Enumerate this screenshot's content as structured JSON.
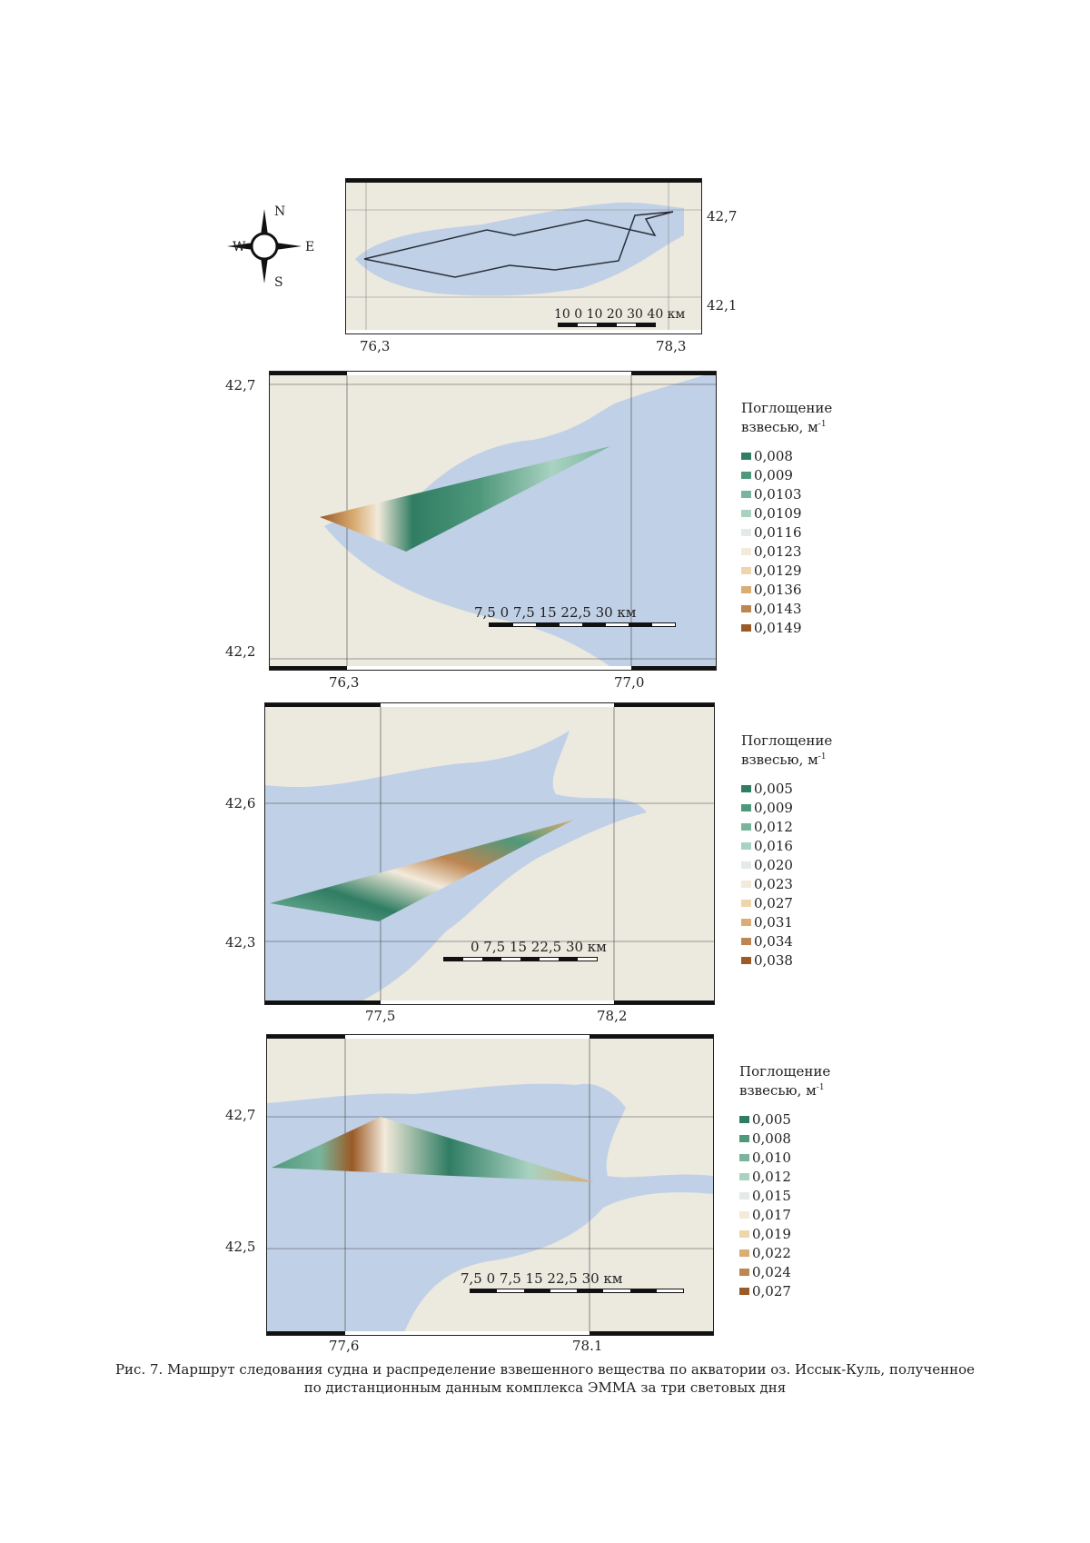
{
  "overview": {
    "coords": {
      "lat_top": "42,7",
      "lat_bottom": "42,1",
      "lon_left": "76,3",
      "lon_right": "78,3"
    },
    "scale_numbers": "10  0  10 20 30 40 км",
    "compass": {
      "n": "N",
      "s": "S",
      "e": "E",
      "w": "W"
    }
  },
  "panels": [
    {
      "coords": {
        "lat_top": "42,7",
        "lat_bottom": "42,2",
        "lon_left": "76,3",
        "lon_right": "77,0"
      },
      "scale_numbers": "7,5    0     7,5    15   22,5    30 км",
      "legend": {
        "title_line1": "Поглощение",
        "title_line2": "взвесью, м",
        "title_sup": "-1",
        "items": [
          {
            "value": "0,008",
            "color": "#2f7d63"
          },
          {
            "value": "0,009",
            "color": "#4f987c"
          },
          {
            "value": "0,0103",
            "color": "#78b59c"
          },
          {
            "value": "0,0109",
            "color": "#a9d2c1"
          },
          {
            "value": "0,0116",
            "color": "#e4ebe6"
          },
          {
            "value": "0,0123",
            "color": "#f3eadb"
          },
          {
            "value": "0,0129",
            "color": "#efd5ac"
          },
          {
            "value": "0,0136",
            "color": "#d9ad73"
          },
          {
            "value": "0,0143",
            "color": "#bd8551"
          },
          {
            "value": "0,0149",
            "color": "#9b5a26"
          }
        ]
      }
    },
    {
      "coords": {
        "lat_top": "42,6",
        "lat_bottom": "42,3",
        "lon_left": "77,5",
        "lon_right": "78,2"
      },
      "scale_numbers": "0    7,5   15   22,5  30 км",
      "legend": {
        "title_line1": "Поглощение",
        "title_line2": "взвесью, м",
        "title_sup": "-1",
        "items": [
          {
            "value": "0,005",
            "color": "#2f7d63"
          },
          {
            "value": "0,009",
            "color": "#4f987c"
          },
          {
            "value": "0,012",
            "color": "#78b59c"
          },
          {
            "value": "0,016",
            "color": "#a9d2c1"
          },
          {
            "value": "0,020",
            "color": "#e4ebe6"
          },
          {
            "value": "0,023",
            "color": "#f3eadb"
          },
          {
            "value": "0,027",
            "color": "#efd5ac"
          },
          {
            "value": "0,031",
            "color": "#d9ad73"
          },
          {
            "value": "0,034",
            "color": "#bd8551"
          },
          {
            "value": "0,038",
            "color": "#9b5a26"
          }
        ]
      }
    },
    {
      "coords": {
        "lat_top": "42,7",
        "lat_bottom": "42,5",
        "lon_left": "77,6",
        "lon_right": "78.1"
      },
      "scale_numbers": "7,5    0      7,5    15    22,5  30 км",
      "legend": {
        "title_line1": "Поглощение",
        "title_line2": "взвесью, м",
        "title_sup": "-1",
        "items": [
          {
            "value": "0,005",
            "color": "#2f7d63"
          },
          {
            "value": "0,008",
            "color": "#4f987c"
          },
          {
            "value": "0,010",
            "color": "#78b59c"
          },
          {
            "value": "0,012",
            "color": "#a9d2c1"
          },
          {
            "value": "0,015",
            "color": "#e4ebe6"
          },
          {
            "value": "0,017",
            "color": "#f3eadb"
          },
          {
            "value": "0,019",
            "color": "#efd5ac"
          },
          {
            "value": "0,022",
            "color": "#d9ad73"
          },
          {
            "value": "0,024",
            "color": "#bd8551"
          },
          {
            "value": "0,027",
            "color": "#9b5a26"
          }
        ]
      }
    }
  ],
  "caption": {
    "line1": "Рис. 7. Маршрут следования судна и распределение взвешенного вещества по акватории оз. Иссык-Куль, полученное",
    "line2": "по дистанционным данным комплекса ЭММА за три световых дня"
  },
  "colors": {
    "water": "#c0d0e6",
    "land": "#ece9df",
    "accent_green": "#2f7d63",
    "accent_brown": "#9b5a26"
  }
}
